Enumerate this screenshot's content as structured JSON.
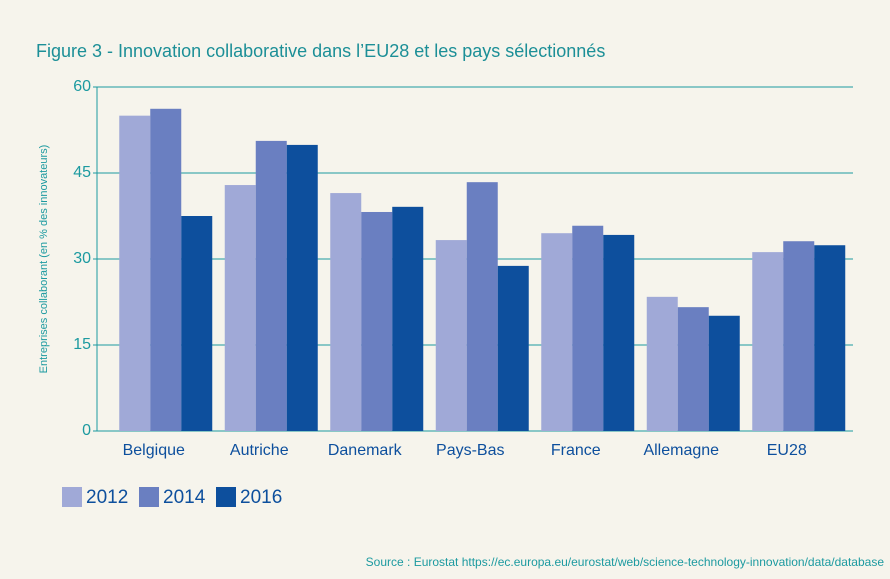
{
  "chart_data": {
    "type": "bar",
    "title": "Figure 3 - Innovation collaborative dans l’EU28 et les pays sélectionnés",
    "y_label": "Entreprises collaborant (en % des  innovateurs)",
    "categories": [
      "Belgique",
      "Autriche",
      "Danemark",
      "Pays-Bas",
      "France",
      "Allemagne",
      "EU28"
    ],
    "series": [
      {
        "name": "2012",
        "color": "#a0a9d7",
        "values": [
          55,
          42.9,
          41.5,
          33.3,
          34.5,
          23.4,
          31.2
        ]
      },
      {
        "name": "2014",
        "color": "#6a7fc1",
        "values": [
          56.2,
          50.6,
          38.2,
          43.4,
          35.8,
          21.6,
          33.1
        ]
      },
      {
        "name": "2016",
        "color": "#0d4f9d",
        "values": [
          37.5,
          49.9,
          39.1,
          28.8,
          34.2,
          20.1,
          32.4
        ]
      }
    ],
    "ylim": [
      0,
      60
    ],
    "yticks": [
      0,
      15,
      30,
      45,
      60
    ],
    "grid": true,
    "source": "Source : Eurostat https://ec.europa.eu/eurostat/web/science-technology-innovation/data/database"
  }
}
